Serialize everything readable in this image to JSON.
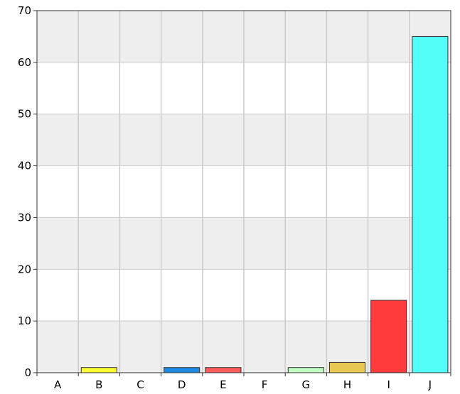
{
  "chart_data": {
    "type": "bar",
    "categories": [
      "A",
      "B",
      "C",
      "D",
      "E",
      "F",
      "G",
      "H",
      "I",
      "J"
    ],
    "values": [
      0,
      1,
      0,
      1,
      1,
      0,
      1,
      2,
      14,
      65
    ],
    "colors": [
      "#888888",
      "#ffff33",
      "#888888",
      "#1e88e5",
      "#ff5a5a",
      "#888888",
      "#bfffbf",
      "#e8c850",
      "#ff3b3b",
      "#52fdf7"
    ],
    "ylim": [
      0,
      70
    ],
    "yticks": [
      0,
      10,
      20,
      30,
      40,
      50,
      60,
      70
    ],
    "grid": true,
    "band_colors": [
      "#eeeeee",
      "#ffffff"
    ],
    "title": "",
    "xlabel": "",
    "ylabel": ""
  }
}
